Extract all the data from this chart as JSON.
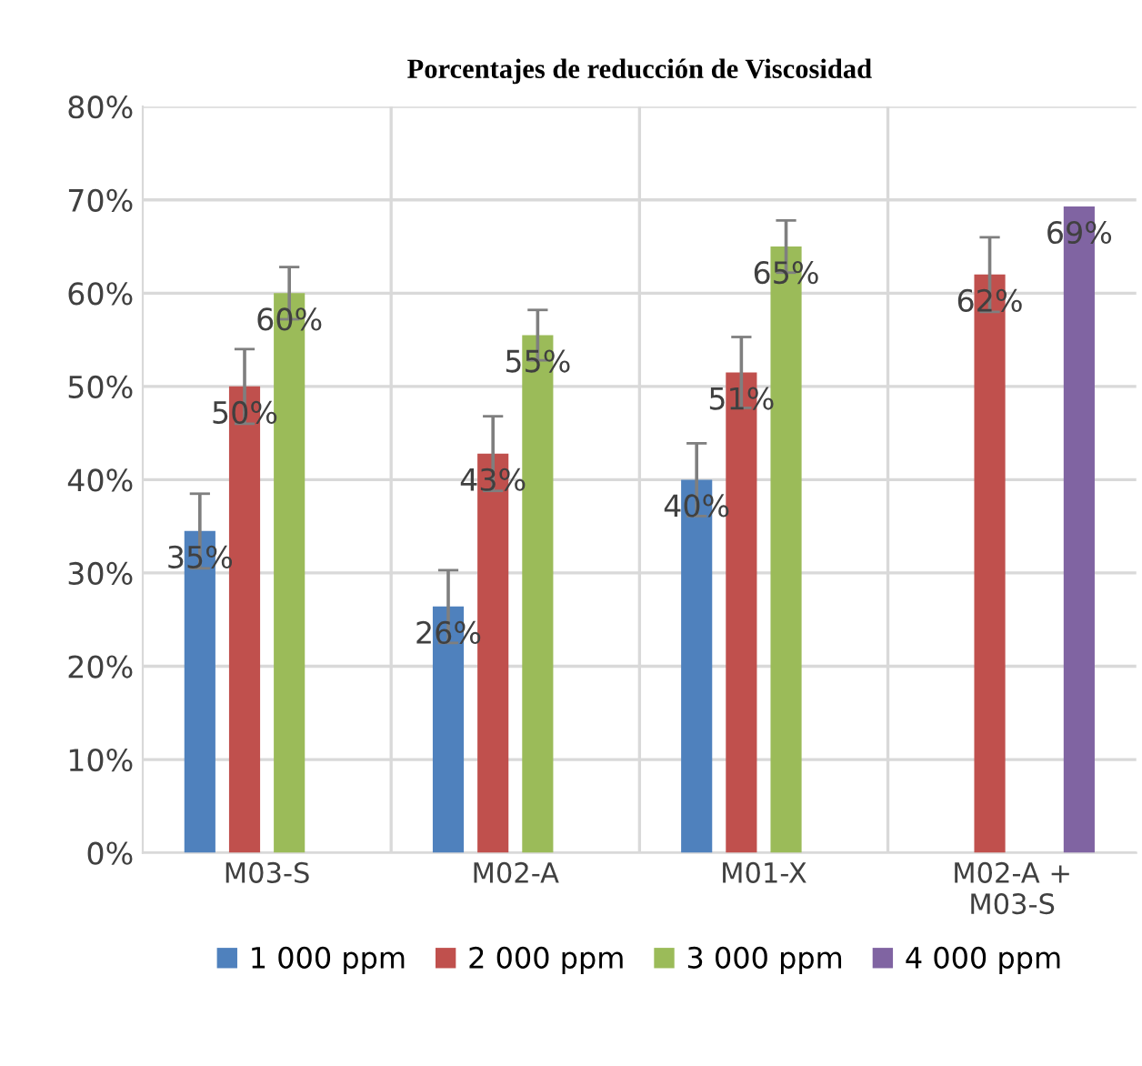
{
  "chart_data": {
    "type": "bar",
    "title": "Porcentajes de reducción de Viscosidad",
    "categories": [
      "M03-S",
      "M02-A",
      "M01-X",
      "M02-A +\nM03-S"
    ],
    "series": [
      {
        "name": "1 000 ppm",
        "color": "#4f81bd",
        "values": [
          34.5,
          26.4,
          40,
          null
        ],
        "errors": [
          4,
          3.9,
          3.9,
          null
        ],
        "value_labels": [
          "35%",
          "26%",
          "40%",
          null
        ]
      },
      {
        "name": "2 000 ppm",
        "color": "#c0504d",
        "values": [
          50,
          42.8,
          51.5,
          62
        ],
        "errors": [
          4,
          4,
          3.8,
          4
        ],
        "value_labels": [
          "50%",
          "43%",
          "51%",
          "62%"
        ]
      },
      {
        "name": "3 000 ppm",
        "color": "#9bbb59",
        "values": [
          60,
          55.5,
          65,
          null
        ],
        "errors": [
          2.8,
          2.7,
          2.8,
          null
        ],
        "value_labels": [
          "60%",
          "55%",
          "65%",
          null
        ]
      },
      {
        "name": "4 000 ppm",
        "color": "#8064a2",
        "values": [
          null,
          null,
          null,
          69.3
        ],
        "value_labels": [
          null,
          null,
          null,
          "69%"
        ]
      }
    ],
    "ylim": [
      0,
      80
    ],
    "yticks": [
      {
        "value": 0,
        "label": "0%"
      },
      {
        "value": 10,
        "label": "10%"
      },
      {
        "value": 20,
        "label": "20%"
      },
      {
        "value": 30,
        "label": "30%"
      },
      {
        "value": 40,
        "label": "40%"
      },
      {
        "value": 50,
        "label": "50%"
      },
      {
        "value": 60,
        "label": "60%"
      },
      {
        "value": 70,
        "label": "70%"
      },
      {
        "value": 80,
        "label": "80%"
      }
    ],
    "grid": true,
    "legend": "bottom"
  }
}
